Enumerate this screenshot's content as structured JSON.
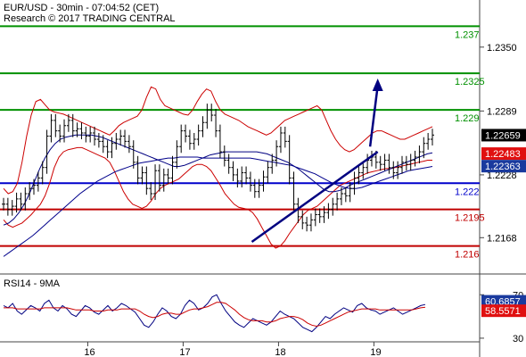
{
  "header": {
    "line1": "EUR/USD - 30min - 07:04:52 (CET)",
    "line2": "Research © 2017 TRADING CENTRAL"
  },
  "colors": {
    "support_line": "#c00000",
    "resistance_line": "#009000",
    "pivot_line": "#0000cc",
    "trend_line": "#000080",
    "bollinger": "#cc0000",
    "ma_fast": "#000080",
    "ma_slow": "#00008b",
    "price_bars": "#000000",
    "price_badge": "#000000",
    "ma_badge_red": "#e01010",
    "ma_badge_blue": "#1a3a9e"
  },
  "chart_data": [
    {
      "type": "line",
      "panel": "price",
      "ylim": [
        1.2135,
        1.2395
      ],
      "x_ticks": [
        {
          "label": "16",
          "x": 23
        },
        {
          "label": "17",
          "x": 48
        },
        {
          "label": "18",
          "x": 73
        },
        {
          "label": "19",
          "x": 98
        }
      ],
      "xlim": [
        0,
        118
      ],
      "y_ticks": [
        {
          "label": "1.2350",
          "value": 1.235
        },
        {
          "label": "1.2289",
          "value": 1.2289
        },
        {
          "label": "1.2228",
          "value": 1.2228
        },
        {
          "label": "1.2168",
          "value": 1.2168
        }
      ],
      "levels": [
        {
          "label": "1.237",
          "value": 1.237,
          "kind": "resistance"
        },
        {
          "label": "1.2325",
          "value": 1.2325,
          "kind": "resistance"
        },
        {
          "label": "1.229",
          "value": 1.229,
          "kind": "resistance"
        },
        {
          "label": "1.222",
          "value": 1.222,
          "kind": "pivot"
        },
        {
          "label": "1.2195",
          "value": 1.2195,
          "kind": "support"
        },
        {
          "label": "1.216",
          "value": 1.216,
          "kind": "support"
        }
      ],
      "badges": [
        {
          "label": "1.22659",
          "value": 1.22659,
          "kind": "price"
        },
        {
          "label": "1.22483",
          "value": 1.22483,
          "kind": "ma-red"
        },
        {
          "label": "1.22363",
          "value": 1.22363,
          "kind": "ma-blue"
        }
      ],
      "price_series": [
        1.22,
        1.2195,
        1.2198,
        1.2205,
        1.22,
        1.221,
        1.2215,
        1.2218,
        1.2225,
        1.2235,
        1.2265,
        1.228,
        1.227,
        1.2265,
        1.2275,
        1.228,
        1.227,
        1.2272,
        1.2268,
        1.2265,
        1.2268,
        1.2262,
        1.226,
        1.2255,
        1.225,
        1.2258,
        1.2262,
        1.2265,
        1.226,
        1.2255,
        1.224,
        1.2225,
        1.223,
        1.2215,
        1.221,
        1.2232,
        1.2218,
        1.2228,
        1.2225,
        1.224,
        1.2255,
        1.227,
        1.2265,
        1.2258,
        1.2262,
        1.227,
        1.2278,
        1.229,
        1.2285,
        1.227,
        1.225,
        1.2242,
        1.2235,
        1.2228,
        1.2222,
        1.223,
        1.2225,
        1.2218,
        1.2212,
        1.2218,
        1.2226,
        1.2235,
        1.2242,
        1.2255,
        1.2268,
        1.226,
        1.2225,
        1.22,
        1.2188,
        1.2182,
        1.218,
        1.2185,
        1.219,
        1.2188,
        1.2192,
        1.2195,
        1.22,
        1.2205,
        1.221,
        1.2208,
        1.2215,
        1.2225,
        1.223,
        1.2235,
        1.2242,
        1.2245,
        1.224,
        1.2238,
        1.2242,
        1.2235,
        1.223,
        1.2235,
        1.224,
        1.2238,
        1.2242,
        1.2245,
        1.225,
        1.2258,
        1.2262,
        1.2266
      ],
      "bb_upper": [
        1.2215,
        1.221,
        1.2212,
        1.222,
        1.224,
        1.2265,
        1.2285,
        1.2298,
        1.23,
        1.2295,
        1.229,
        1.2288,
        1.2287,
        1.2286,
        1.2284,
        1.2282,
        1.228,
        1.2278,
        1.2276,
        1.2274,
        1.2272,
        1.227,
        1.2268,
        1.2266,
        1.227,
        1.2275,
        1.2278,
        1.228,
        1.2282,
        1.2284,
        1.229,
        1.2302,
        1.2312,
        1.231,
        1.23,
        1.2294,
        1.2292,
        1.229,
        1.2288,
        1.2286,
        1.2285,
        1.229,
        1.2298,
        1.2305,
        1.231,
        1.2308,
        1.2298,
        1.229,
        1.2286,
        1.2284,
        1.2282,
        1.228,
        1.2277,
        1.2274,
        1.2272,
        1.227,
        1.2268,
        1.2266,
        1.2268,
        1.2272,
        1.2276,
        1.228,
        1.2282,
        1.2284,
        1.2286,
        1.2288,
        1.229,
        1.2292,
        1.2294,
        1.229,
        1.228,
        1.227,
        1.2262,
        1.2256,
        1.2252,
        1.225,
        1.2252,
        1.2256,
        1.226,
        1.2264,
        1.2268,
        1.227,
        1.227,
        1.2268,
        1.2266,
        1.2264,
        1.2262,
        1.2262,
        1.2264,
        1.2266,
        1.2268,
        1.227,
        1.2272,
        1.2274
      ],
      "bb_lower": [
        1.2185,
        1.218,
        1.2178,
        1.218,
        1.2182,
        1.2186,
        1.219,
        1.2195,
        1.22,
        1.2208,
        1.222,
        1.2235,
        1.2245,
        1.225,
        1.2252,
        1.2253,
        1.2254,
        1.2254,
        1.2252,
        1.225,
        1.2248,
        1.2246,
        1.2244,
        1.224,
        1.2232,
        1.2222,
        1.2212,
        1.2205,
        1.22,
        1.2198,
        1.2196,
        1.2198,
        1.2203,
        1.221,
        1.2215,
        1.2218,
        1.222,
        1.2222,
        1.2224,
        1.2228,
        1.2232,
        1.2236,
        1.2238,
        1.2238,
        1.2236,
        1.2232,
        1.2225,
        1.2218,
        1.221,
        1.2205,
        1.22,
        1.2197,
        1.2196,
        1.2195,
        1.2192,
        1.2186,
        1.2178,
        1.217,
        1.2162,
        1.2158,
        1.216,
        1.2165,
        1.2172,
        1.2178,
        1.2184,
        1.219,
        1.2194,
        1.2196,
        1.2198,
        1.2202,
        1.2206,
        1.221,
        1.2214,
        1.2218,
        1.222,
        1.2222,
        1.2224,
        1.2226,
        1.2228,
        1.223,
        1.2231,
        1.2232,
        1.2233,
        1.2234,
        1.2234,
        1.2235,
        1.2236,
        1.2237,
        1.2238,
        1.2239,
        1.224,
        1.2241,
        1.2242,
        1.2242
      ],
      "ma_fast": [
        1.218,
        1.2182,
        1.2186,
        1.2192,
        1.22,
        1.221,
        1.2222,
        1.2234,
        1.2244,
        1.2252,
        1.2258,
        1.2262,
        1.2264,
        1.2265,
        1.2266,
        1.2266,
        1.2266,
        1.2266,
        1.2265,
        1.2264,
        1.2262,
        1.226,
        1.2258,
        1.2256,
        1.2254,
        1.2252,
        1.225,
        1.2248,
        1.2246,
        1.2244,
        1.2242,
        1.224,
        1.2238,
        1.2236,
        1.2236,
        1.2237,
        1.2239,
        1.2241,
        1.2243,
        1.2245,
        1.2247,
        1.2248,
        1.2249,
        1.225,
        1.225,
        1.225,
        1.225,
        1.225,
        1.225,
        1.225,
        1.2249,
        1.2248,
        1.2246,
        1.2244,
        1.2242,
        1.224,
        1.2237,
        1.2234,
        1.223,
        1.2226,
        1.2222,
        1.2218,
        1.2214,
        1.2212,
        1.2212,
        1.2213,
        1.2215,
        1.2218,
        1.222,
        1.2222,
        1.2224,
        1.2226,
        1.2228,
        1.223,
        1.2232,
        1.2234,
        1.2236,
        1.2238,
        1.224,
        1.2242,
        1.2244,
        1.2246,
        1.2248,
        1.2249
      ],
      "ma_slow": [
        1.215,
        1.2154,
        1.2158,
        1.2162,
        1.2166,
        1.217,
        1.2175,
        1.218,
        1.2185,
        1.219,
        1.2195,
        1.22,
        1.2205,
        1.221,
        1.2214,
        1.2218,
        1.2222,
        1.2225,
        1.2228,
        1.2231,
        1.2233,
        1.2235,
        1.2237,
        1.2239,
        1.224,
        1.2241,
        1.2242,
        1.2243,
        1.2244,
        1.2244,
        1.2245,
        1.2245,
        1.2245,
        1.2245,
        1.2244,
        1.2244,
        1.2244,
        1.2244,
        1.2244,
        1.2244,
        1.2244,
        1.2244,
        1.2244,
        1.2243,
        1.2242,
        1.2241,
        1.224,
        1.2239,
        1.2238,
        1.2237,
        1.2235,
        1.2233,
        1.2231,
        1.2229,
        1.2226,
        1.2223,
        1.222,
        1.2218,
        1.2216,
        1.2215,
        1.2215,
        1.2216,
        1.2218,
        1.222,
        1.2222,
        1.2224,
        1.2226,
        1.2228,
        1.223,
        1.2232,
        1.2233,
        1.2234,
        1.2235,
        1.2236
      ],
      "trend_line": [
        [
          66,
          1.2164
        ],
        [
          99,
          1.225
        ]
      ],
      "projection_arrow": [
        [
          97,
          1.2255
        ],
        [
          99,
          1.232
        ]
      ]
    },
    {
      "type": "line",
      "panel": "rsi",
      "title": "RSI14 - 9MA",
      "ylim": [
        25,
        85
      ],
      "y_ticks": [
        {
          "label": "70",
          "value": 70
        },
        {
          "label": "30",
          "value": 30
        }
      ],
      "badges": [
        {
          "label": "60.6857",
          "value": 60.6857,
          "kind": "rsi"
        },
        {
          "label": "58.5571",
          "value": 58.5571,
          "kind": "ma"
        }
      ],
      "rsi": [
        60,
        58,
        62,
        55,
        52,
        56,
        60,
        58,
        55,
        62,
        65,
        58,
        55,
        60,
        57,
        52,
        50,
        55,
        60,
        58,
        54,
        52,
        56,
        60,
        55,
        58,
        62,
        60,
        57,
        54,
        48,
        42,
        40,
        45,
        52,
        58,
        55,
        50,
        48,
        52,
        60,
        65,
        62,
        56,
        58,
        62,
        68,
        70,
        62,
        55,
        50,
        45,
        42,
        40,
        44,
        48,
        46,
        44,
        42,
        45,
        50,
        55,
        52,
        50,
        48,
        44,
        40,
        38,
        36,
        40,
        45,
        50,
        48,
        52,
        55,
        58,
        56,
        54,
        60,
        62,
        58,
        56,
        55,
        52,
        54,
        56,
        58,
        55,
        52,
        54,
        56,
        58,
        60,
        61
      ],
      "rsi_ma": [
        58,
        58,
        58,
        57,
        57,
        57,
        57,
        57,
        57,
        58,
        58,
        58,
        58,
        58,
        58,
        57,
        56,
        56,
        56,
        56,
        55,
        55,
        55,
        56,
        56,
        56,
        57,
        57,
        57,
        57,
        55,
        52,
        50,
        49,
        50,
        52,
        53,
        53,
        52,
        52,
        54,
        56,
        57,
        57,
        58,
        59,
        61,
        63,
        63,
        62,
        59,
        56,
        52,
        49,
        47,
        46,
        46,
        46,
        45,
        45,
        46,
        48,
        49,
        50,
        50,
        49,
        47,
        44,
        42,
        41,
        42,
        44,
        46,
        48,
        50,
        52,
        54,
        55,
        56,
        57,
        57,
        57,
        57,
        56,
        56,
        56,
        56,
        56,
        56,
        56,
        56,
        57,
        58,
        58.5
      ]
    }
  ]
}
